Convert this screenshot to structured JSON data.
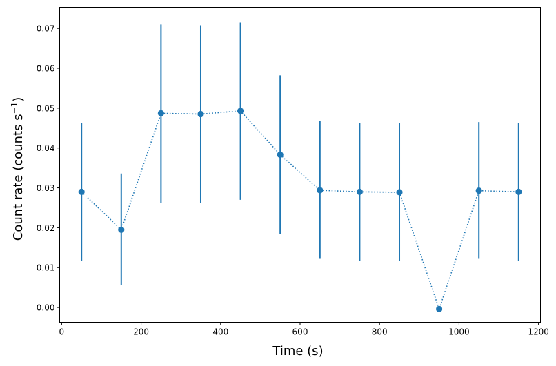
{
  "chart_data": {
    "type": "scatter",
    "xlabel": "Time (s)",
    "ylabel_main": "Count rate (counts s",
    "ylabel_sup": "−1",
    "ylabel_tail": ")",
    "xlim": [
      -5,
      1205
    ],
    "ylim": [
      -0.0037,
      0.0753
    ],
    "xticks": [
      0,
      200,
      400,
      600,
      800,
      1000,
      1200
    ],
    "yticks": [
      0.0,
      0.01,
      0.02,
      0.03,
      0.04,
      0.05,
      0.06,
      0.07
    ],
    "ytick_labels": [
      "0.00",
      "0.01",
      "0.02",
      "0.03",
      "0.04",
      "0.05",
      "0.06",
      "0.07"
    ],
    "color": "#1f77b4",
    "line_style": "dotted",
    "grid": false,
    "series": [
      {
        "x": [
          50,
          150,
          250,
          350,
          450,
          550,
          650,
          750,
          850,
          950,
          1050,
          1150
        ],
        "y": [
          0.029,
          0.0195,
          0.0487,
          0.0485,
          0.0493,
          0.0383,
          0.0294,
          0.029,
          0.0289,
          -0.0004,
          0.0293,
          0.029
        ],
        "yerr_low": [
          0.0117,
          0.0056,
          0.0263,
          0.0263,
          0.027,
          0.0184,
          0.0122,
          0.0117,
          0.0117,
          -0.0004,
          0.0122,
          0.0117
        ],
        "yerr_high": [
          0.0462,
          0.0336,
          0.071,
          0.0708,
          0.0715,
          0.0582,
          0.0467,
          0.0462,
          0.0462,
          -0.0004,
          0.0465,
          0.0462
        ]
      }
    ]
  }
}
